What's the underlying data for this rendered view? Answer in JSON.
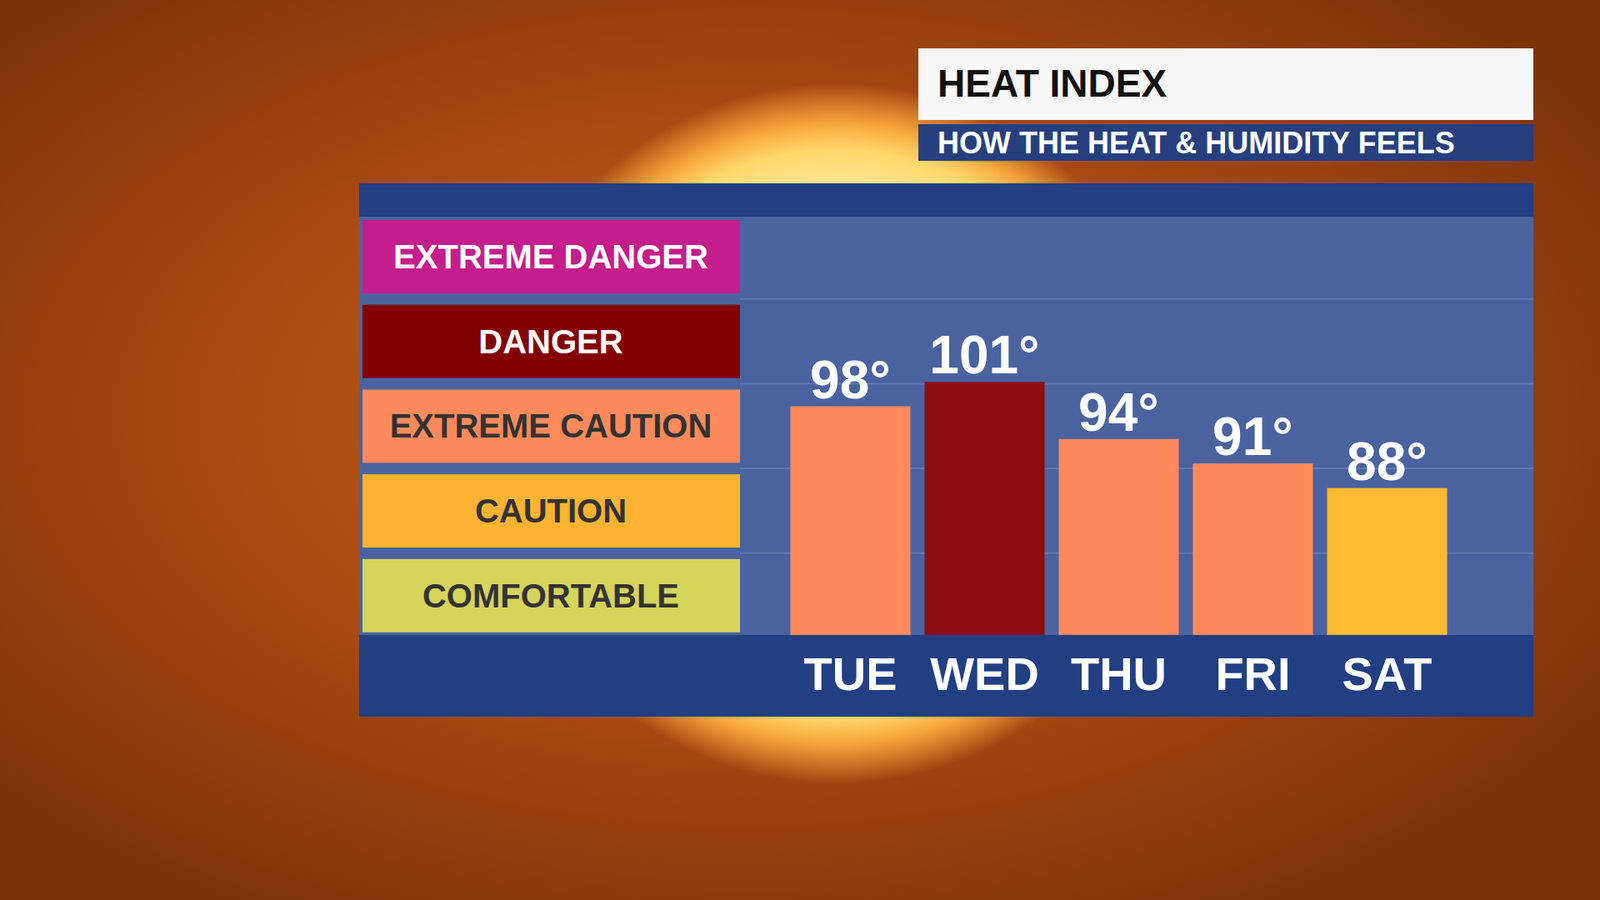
{
  "chart_data": {
    "type": "bar",
    "title": "HEAT INDEX",
    "subtitle": "HOW THE HEAT & HUMIDITY FEELS",
    "categories": [
      "TUE",
      "WED",
      "THU",
      "FRI",
      "SAT"
    ],
    "values": [
      98,
      101,
      94,
      91,
      88
    ],
    "value_labels": [
      "98°",
      "101°",
      "94°",
      "91°",
      "88°"
    ],
    "colors": [
      "#fe8a5b",
      "#8b0e10",
      "#fe8a5b",
      "#fe8a5b",
      "#fdb92f"
    ],
    "data_labels": true,
    "tick_labels": "x",
    "ylim": [
      70,
      120
    ],
    "zones": [
      {
        "label": "EXTREME DANGER",
        "color": "#c41d8c"
      },
      {
        "label": "DANGER",
        "color": "#830000"
      },
      {
        "label": "EXTREME CAUTION",
        "color": "#fe8a5b"
      },
      {
        "label": "CAUTION",
        "color": "#fdb32f"
      },
      {
        "label": "COMFORTABLE",
        "color": "#d6d45a"
      }
    ]
  }
}
